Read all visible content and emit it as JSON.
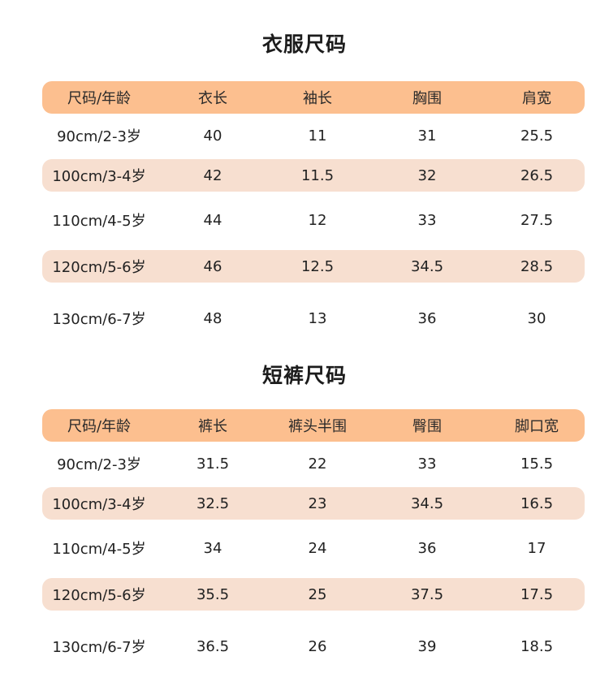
{
  "clothing": {
    "title": "衣服尺码",
    "headers": [
      "尺码/年龄",
      "衣长",
      "袖长",
      "胸围",
      "肩宽"
    ],
    "rows": [
      [
        "90cm/2-3岁",
        "40",
        "11",
        "31",
        "25.5"
      ],
      [
        "100cm/3-4岁",
        "42",
        "11.5",
        "32",
        "26.5"
      ],
      [
        "110cm/4-5岁",
        "44",
        "12",
        "33",
        "27.5"
      ],
      [
        "120cm/5-6岁",
        "46",
        "12.5",
        "34.5",
        "28.5"
      ],
      [
        "130cm/6-7岁",
        "48",
        "13",
        "36",
        "30"
      ]
    ]
  },
  "shorts": {
    "title": "短裤尺码",
    "headers": [
      "尺码/年龄",
      "裤长",
      "裤头半围",
      "臀围",
      "脚口宽"
    ],
    "rows": [
      [
        "90cm/2-3岁",
        "31.5",
        "22",
        "33",
        "15.5"
      ],
      [
        "100cm/3-4岁",
        "32.5",
        "23",
        "34.5",
        "16.5"
      ],
      [
        "110cm/4-5岁",
        "34",
        "24",
        "36",
        "17"
      ],
      [
        "120cm/5-6岁",
        "35.5",
        "25",
        "37.5",
        "17.5"
      ],
      [
        "130cm/6-7岁",
        "36.5",
        "26",
        "39",
        "18.5"
      ]
    ]
  }
}
